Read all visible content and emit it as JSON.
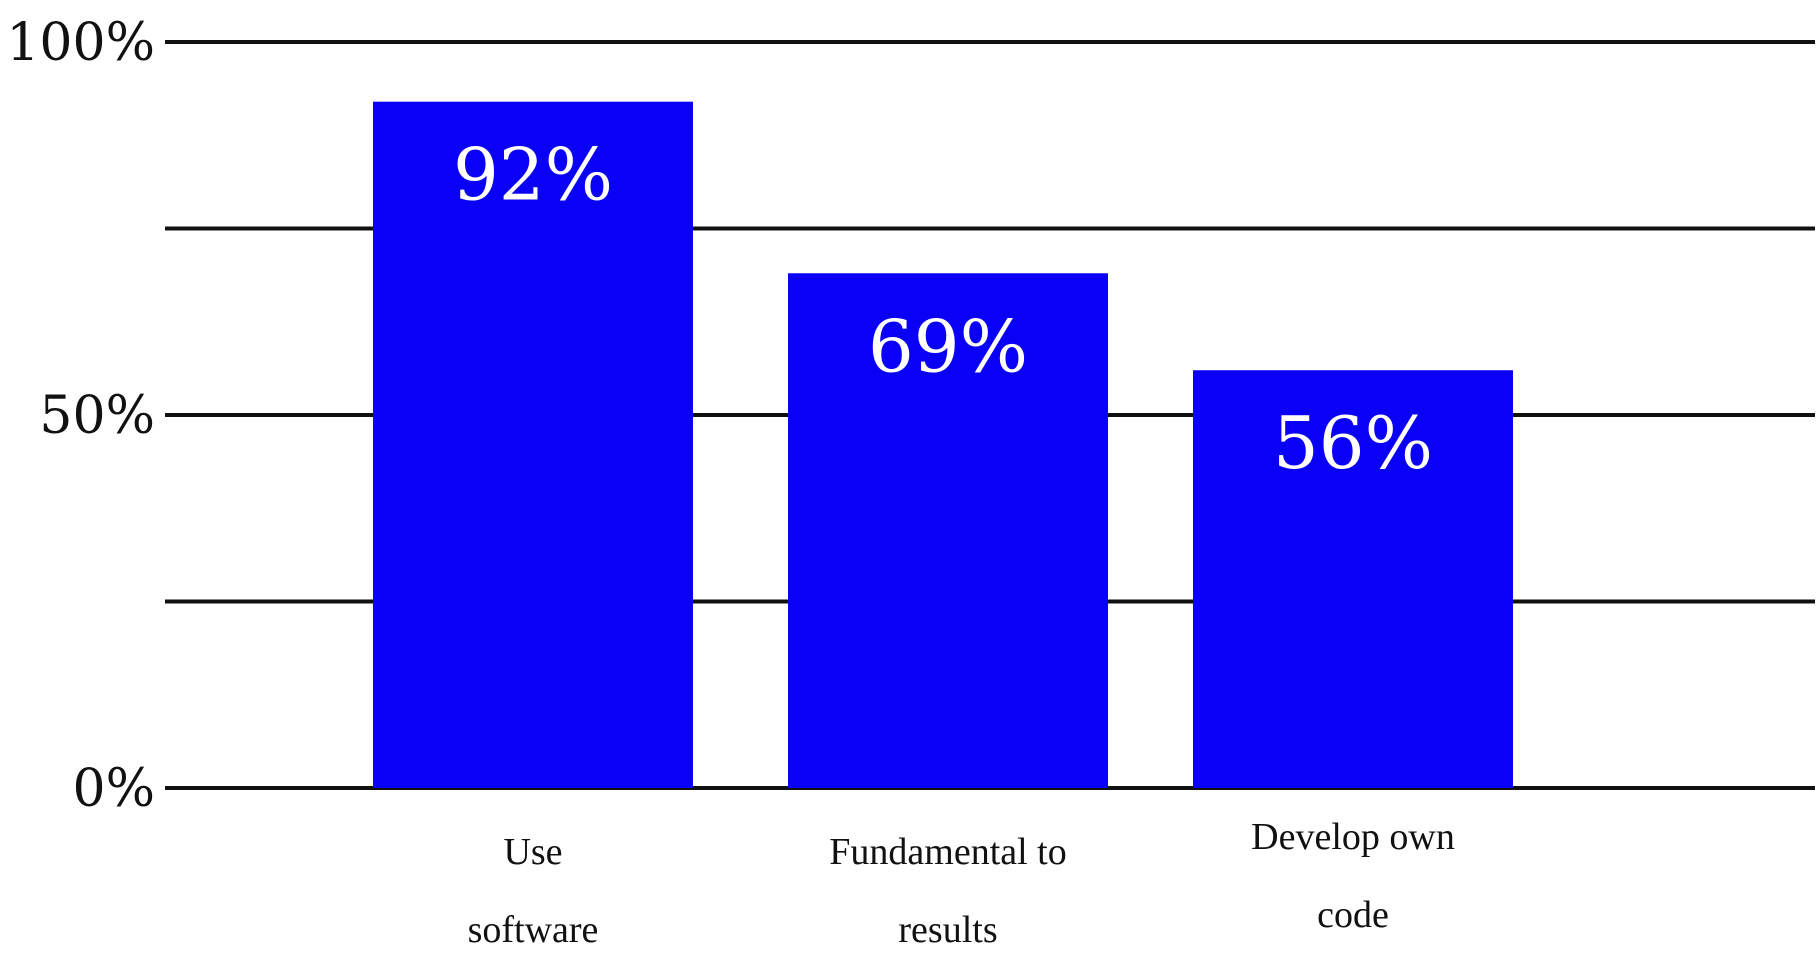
{
  "chart_data": {
    "type": "bar",
    "categories": [
      [
        "Use",
        "software"
      ],
      [
        "Fundamental to",
        "results"
      ],
      [
        "Develop own",
        "code"
      ]
    ],
    "values": [
      92,
      69,
      56
    ],
    "data_labels": [
      "92%",
      "69%",
      "56%"
    ],
    "y_ticks": [
      {
        "value": 0,
        "label": "0%"
      },
      {
        "value": 50,
        "label": "50%"
      },
      {
        "value": 100,
        "label": "100%"
      }
    ],
    "gridlines": [
      0,
      25,
      50,
      75,
      100
    ],
    "ylim": [
      0,
      100
    ],
    "title": "",
    "xlabel": "",
    "ylabel": "",
    "grid": true,
    "legend": "none",
    "colors": {
      "bar": "#0a00f5",
      "gridline": "#111111",
      "label": "#111111",
      "bar_label": "#ffffff"
    }
  }
}
